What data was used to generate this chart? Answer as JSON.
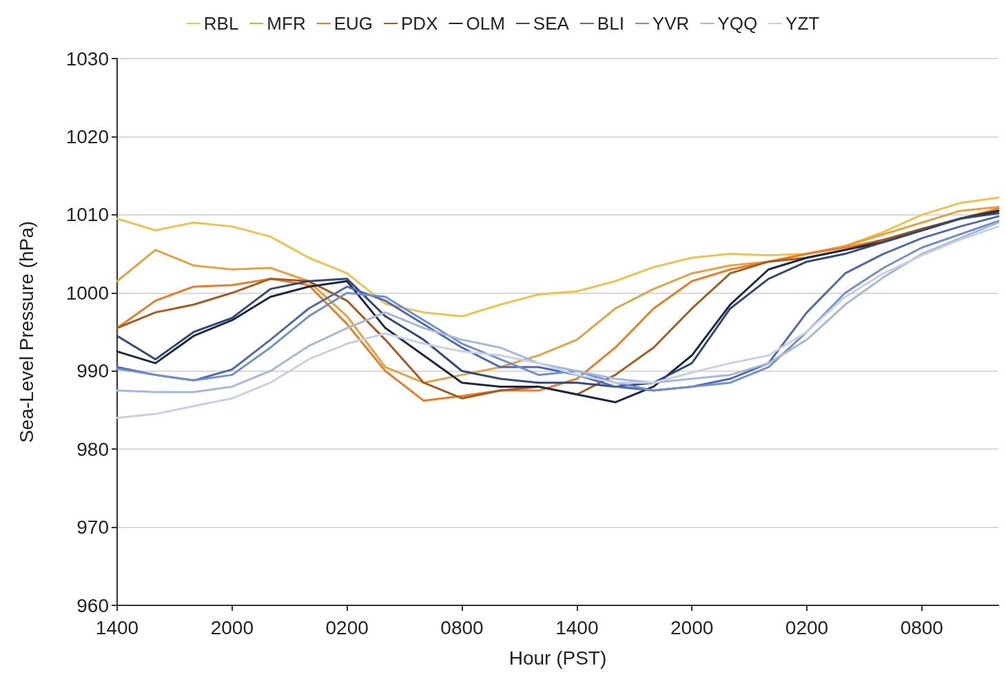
{
  "chart_data": {
    "type": "line",
    "xlabel": "Hour (PST)",
    "ylabel": "Sea-Level Pressure (hPa)",
    "categories": [
      "1400",
      null,
      null,
      "2000",
      null,
      null,
      "0200",
      null,
      null,
      "0800",
      null,
      null,
      "1400",
      null,
      null,
      "2000",
      null,
      null,
      "0200",
      null,
      null,
      "0800",
      null,
      null
    ],
    "ylim": [
      960,
      1030
    ],
    "yticks": [
      960,
      970,
      980,
      990,
      1000,
      1010,
      1020,
      1030
    ],
    "grid": "y",
    "legend": "top",
    "marker": "none",
    "line_style": "solid",
    "series": [
      {
        "name": "RBL",
        "color": "#f0c24a",
        "values": [
          1009.5,
          1008,
          1009,
          1008.5,
          1007.2,
          1004.5,
          1002.5,
          998.6,
          997.5,
          997,
          998.5,
          999.8,
          1000.2,
          1001.5,
          1003.3,
          1004.5,
          1005,
          1004.8,
          1005,
          1006,
          1007.8,
          1010,
          1011.5,
          1012.2
        ]
      },
      {
        "name": "MFR",
        "color": "#e6a23c",
        "values": [
          1001.5,
          1005.5,
          1003.5,
          1003,
          1003.2,
          1001.5,
          997,
          990.5,
          988.5,
          989.5,
          990.5,
          992,
          994,
          998,
          1000.5,
          1002.5,
          1003.5,
          1004,
          1005,
          1006,
          1007.5,
          1009,
          1010.5,
          1011
        ]
      },
      {
        "name": "EUG",
        "color": "#f07a22",
        "values": [
          995.5,
          999,
          1000.8,
          1001,
          1001.8,
          1001,
          996,
          990,
          986.2,
          986.8,
          987.5,
          987.5,
          989,
          993,
          998,
          1001.5,
          1003,
          1004,
          1005,
          1005.8,
          1006.8,
          1008,
          1009.5,
          1010.8
        ]
      },
      {
        "name": "PDX",
        "color": "#a65a1e",
        "values": [
          995.5,
          997.5,
          998.5,
          1000,
          1001.8,
          1001.5,
          999,
          994,
          988.5,
          986.5,
          987.5,
          988,
          987,
          989.5,
          993,
          998,
          1002.5,
          1004,
          1004.5,
          1005.5,
          1006.8,
          1008.2,
          1009.5,
          1010.5
        ]
      },
      {
        "name": "OLM",
        "color": "#1b2845",
        "values": [
          992.5,
          991,
          994.5,
          996.5,
          999.5,
          1000.8,
          1001.5,
          995.5,
          992,
          988.5,
          988,
          988,
          987,
          986,
          988,
          992,
          998.5,
          1003,
          1004.5,
          1005.5,
          1006.5,
          1008,
          1009.5,
          1010.5
        ]
      },
      {
        "name": "SEA",
        "color": "#2f4a78",
        "values": [
          994.5,
          991.5,
          995,
          996.8,
          1000.5,
          1001.5,
          1001.8,
          997,
          994,
          990,
          989,
          988.5,
          988.5,
          988,
          988.5,
          991,
          998,
          1001.8,
          1004,
          1005,
          1006.5,
          1008,
          1009.5,
          1010.2
        ]
      },
      {
        "name": "BLI",
        "color": "#4d68b6",
        "values": [
          990.5,
          989.5,
          988.8,
          990.2,
          994,
          998,
          1000.8,
          999,
          996,
          993,
          990.5,
          990.5,
          989.5,
          988,
          987.5,
          988,
          989,
          991,
          997.5,
          1002.5,
          1005,
          1007,
          1008.5,
          1009.8
        ]
      },
      {
        "name": "YVR",
        "color": "#6f90cc",
        "values": [
          990.3,
          989.5,
          988.8,
          989.5,
          993,
          997,
          1000,
          999.5,
          996.5,
          993.5,
          991.5,
          989.5,
          990,
          988.5,
          987.5,
          988,
          988.5,
          990.5,
          995,
          1000,
          1003.2,
          1005.8,
          1007.5,
          1009.2
        ]
      },
      {
        "name": "YQQ",
        "color": "#a6b8d8",
        "values": [
          987.5,
          987.3,
          987.3,
          988,
          990,
          993.2,
          995.5,
          997.5,
          995.5,
          994,
          993,
          991,
          990,
          989,
          988.5,
          989,
          989.5,
          991,
          994,
          998.5,
          1002,
          1005,
          1007,
          1009
        ]
      },
      {
        "name": "YZT",
        "color": "#c8d0e8",
        "values": [
          984,
          984.5,
          985.5,
          986.5,
          988.5,
          991.5,
          993.5,
          994.8,
          993.5,
          992.5,
          992,
          991,
          989.5,
          988.5,
          988.5,
          989.8,
          991,
          992,
          995,
          999.5,
          1002.5,
          1004.8,
          1006.8,
          1008.5
        ]
      }
    ]
  }
}
